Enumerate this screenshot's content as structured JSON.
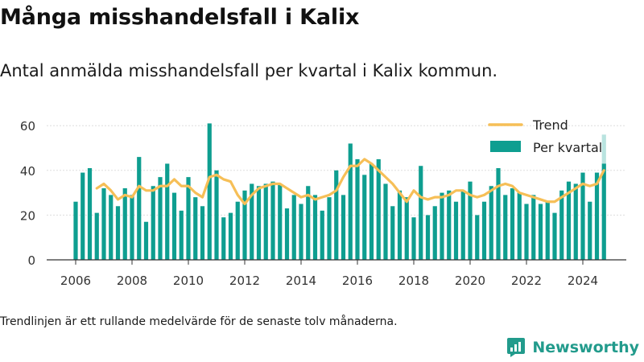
{
  "title": "Många misshandelsfall i Kalix",
  "subtitle": "Antal anmälda misshandelsfall per kvartal i Kalix kommun.",
  "footnote": "Trendlinjen är ett rullande medelvärde för de senaste tolv månaderna.",
  "brand": {
    "name": "Newsworthy",
    "icon": "newsworthy-logo-icon"
  },
  "colors": {
    "bars": "#0e9e90",
    "trend": "#f6bf57",
    "bar_projected": "#b9e3df",
    "axis": "#333333"
  },
  "chart_data": {
    "type": "bar",
    "title": "Många misshandelsfall i Kalix",
    "ylim": [
      0,
      65
    ],
    "yticks": [
      0,
      20,
      40,
      60
    ],
    "xticks": [
      "2006",
      "2008",
      "2010",
      "2012",
      "2014",
      "2016",
      "2018",
      "2020",
      "2022",
      "2024"
    ],
    "grid": true,
    "legend": {
      "position": "top-right",
      "entries": [
        "Trend",
        "Per kvartal"
      ]
    },
    "x": [
      "2006Q1",
      "2006Q2",
      "2006Q3",
      "2006Q4",
      "2007Q1",
      "2007Q2",
      "2007Q3",
      "2007Q4",
      "2008Q1",
      "2008Q2",
      "2008Q3",
      "2008Q4",
      "2009Q1",
      "2009Q2",
      "2009Q3",
      "2009Q4",
      "2010Q1",
      "2010Q2",
      "2010Q3",
      "2010Q4",
      "2011Q1",
      "2011Q2",
      "2011Q3",
      "2011Q4",
      "2012Q1",
      "2012Q2",
      "2012Q3",
      "2012Q4",
      "2013Q1",
      "2013Q2",
      "2013Q3",
      "2013Q4",
      "2014Q1",
      "2014Q2",
      "2014Q3",
      "2014Q4",
      "2015Q1",
      "2015Q2",
      "2015Q3",
      "2015Q4",
      "2016Q1",
      "2016Q2",
      "2016Q3",
      "2016Q4",
      "2017Q1",
      "2017Q2",
      "2017Q3",
      "2017Q4",
      "2018Q1",
      "2018Q2",
      "2018Q3",
      "2018Q4",
      "2019Q1",
      "2019Q2",
      "2019Q3",
      "2019Q4",
      "2020Q1",
      "2020Q2",
      "2020Q3",
      "2020Q4",
      "2021Q1",
      "2021Q2",
      "2021Q3",
      "2021Q4",
      "2022Q1",
      "2022Q2",
      "2022Q3",
      "2022Q4",
      "2023Q1",
      "2023Q2",
      "2023Q3",
      "2023Q4",
      "2024Q1",
      "2024Q2",
      "2024Q3",
      "2024Q4"
    ],
    "series": [
      {
        "name": "Per kvartal",
        "type": "bar",
        "values": [
          26,
          39,
          41,
          21,
          32,
          29,
          24,
          32,
          29,
          46,
          17,
          33,
          37,
          43,
          30,
          22,
          37,
          28,
          24,
          61,
          40,
          19,
          21,
          26,
          31,
          34,
          33,
          34,
          35,
          34,
          23,
          29,
          25,
          33,
          29,
          22,
          28,
          40,
          29,
          52,
          45,
          38,
          43,
          45,
          34,
          24,
          31,
          28,
          19,
          42,
          20,
          24,
          30,
          31,
          26,
          31,
          35,
          20,
          26,
          33,
          41,
          29,
          32,
          30,
          25,
          29,
          25,
          26,
          21,
          31,
          35,
          34,
          39,
          26,
          39,
          43
        ]
      },
      {
        "name": "Trend",
        "type": "line",
        "values": [
          null,
          null,
          null,
          32,
          34,
          31,
          27,
          29,
          28,
          33,
          31,
          31,
          33,
          33,
          36,
          33,
          33,
          30,
          28,
          37,
          38,
          36,
          35,
          29,
          25,
          29,
          32,
          33,
          34,
          34,
          32,
          30,
          28,
          29,
          27,
          28,
          29,
          31,
          37,
          42,
          42,
          45,
          43,
          40,
          37,
          34,
          30,
          26,
          31,
          28,
          27,
          28,
          28,
          29,
          31,
          31,
          29,
          28,
          29,
          31,
          33,
          34,
          33,
          30,
          29,
          28,
          27,
          26,
          26,
          28,
          30,
          32,
          34,
          33,
          34,
          40
        ]
      }
    ],
    "projected_last_bar": 56
  }
}
